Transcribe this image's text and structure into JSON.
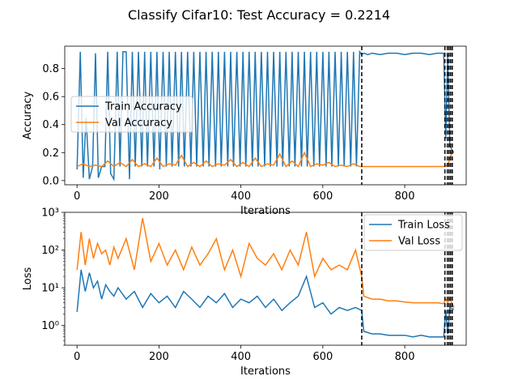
{
  "figure": {
    "title": "Classify Cifar10: Test Accuracy = 0.2214"
  },
  "chart_data": [
    {
      "type": "line",
      "panel": "accuracy",
      "xlabel": "Iterations",
      "ylabel": "Accuracy",
      "xlim": [
        -30,
        950
      ],
      "ylim": [
        -0.03,
        0.96
      ],
      "yscale": "linear",
      "xticks": [
        0,
        200,
        400,
        600,
        800
      ],
      "yticks": [
        0.0,
        0.2,
        0.4,
        0.6,
        0.8
      ],
      "ytick_labels": [
        "0.0",
        "0.2",
        "0.4",
        "0.6",
        "0.8"
      ],
      "legend_position": "center-left",
      "vlines": [
        695,
        898,
        904,
        908,
        912,
        916
      ],
      "series": [
        {
          "name": "Train Accuracy",
          "color": "#1f77b4",
          "x": [
            0,
            8,
            15,
            22,
            30,
            38,
            45,
            52,
            60,
            68,
            75,
            82,
            90,
            98,
            105,
            112,
            120,
            128,
            135,
            142,
            150,
            158,
            165,
            172,
            180,
            188,
            195,
            202,
            210,
            218,
            225,
            232,
            240,
            248,
            255,
            262,
            270,
            278,
            285,
            292,
            300,
            308,
            315,
            322,
            330,
            338,
            345,
            352,
            360,
            368,
            375,
            382,
            390,
            398,
            405,
            412,
            420,
            428,
            435,
            442,
            450,
            458,
            465,
            472,
            480,
            488,
            495,
            502,
            510,
            518,
            525,
            532,
            540,
            548,
            555,
            562,
            570,
            578,
            585,
            592,
            600,
            608,
            615,
            622,
            630,
            638,
            645,
            652,
            660,
            668,
            675,
            682,
            690,
            695,
            700,
            710,
            720,
            740,
            760,
            780,
            800,
            820,
            840,
            860,
            880,
            895,
            900,
            905,
            910,
            915,
            920
          ],
          "y": [
            0.08,
            0.92,
            0.02,
            0.45,
            0.01,
            0.1,
            0.91,
            0.02,
            0.1,
            0.1,
            0.92,
            0.05,
            0.01,
            0.92,
            0.1,
            0.92,
            0.92,
            0.01,
            0.92,
            0.1,
            0.92,
            0.1,
            0.92,
            0.1,
            0.92,
            0.1,
            0.92,
            0.08,
            0.92,
            0.1,
            0.92,
            0.1,
            0.92,
            0.1,
            0.92,
            0.1,
            0.92,
            0.1,
            0.92,
            0.1,
            0.92,
            0.1,
            0.92,
            0.1,
            0.92,
            0.1,
            0.92,
            0.1,
            0.92,
            0.1,
            0.92,
            0.1,
            0.92,
            0.1,
            0.92,
            0.1,
            0.92,
            0.1,
            0.92,
            0.1,
            0.92,
            0.1,
            0.92,
            0.1,
            0.92,
            0.1,
            0.92,
            0.1,
            0.92,
            0.1,
            0.92,
            0.1,
            0.92,
            0.1,
            0.92,
            0.1,
            0.92,
            0.1,
            0.92,
            0.1,
            0.92,
            0.1,
            0.92,
            0.1,
            0.92,
            0.1,
            0.92,
            0.1,
            0.92,
            0.1,
            0.92,
            0.1,
            0.92,
            0.9,
            0.91,
            0.9,
            0.91,
            0.9,
            0.91,
            0.91,
            0.9,
            0.91,
            0.91,
            0.9,
            0.91,
            0.91,
            0.3,
            0.9,
            0.25,
            0.22,
            0.2
          ]
        },
        {
          "name": "Val Accuracy",
          "color": "#ff7f0e",
          "x": [
            0,
            15,
            30,
            45,
            60,
            75,
            90,
            105,
            120,
            135,
            150,
            165,
            180,
            195,
            210,
            225,
            240,
            255,
            270,
            285,
            300,
            315,
            330,
            345,
            360,
            375,
            390,
            405,
            420,
            435,
            450,
            465,
            480,
            495,
            510,
            525,
            540,
            555,
            570,
            585,
            600,
            615,
            630,
            645,
            660,
            675,
            690,
            700,
            720,
            740,
            760,
            780,
            800,
            820,
            840,
            860,
            880,
            895,
            905,
            915,
            920
          ],
          "y": [
            0.1,
            0.12,
            0.1,
            0.11,
            0.1,
            0.14,
            0.1,
            0.13,
            0.1,
            0.15,
            0.1,
            0.12,
            0.1,
            0.16,
            0.1,
            0.12,
            0.11,
            0.18,
            0.1,
            0.13,
            0.1,
            0.14,
            0.1,
            0.12,
            0.11,
            0.15,
            0.1,
            0.13,
            0.1,
            0.16,
            0.1,
            0.12,
            0.11,
            0.19,
            0.1,
            0.14,
            0.1,
            0.2,
            0.1,
            0.12,
            0.11,
            0.13,
            0.1,
            0.11,
            0.1,
            0.12,
            0.1,
            0.1,
            0.1,
            0.1,
            0.1,
            0.1,
            0.1,
            0.1,
            0.1,
            0.1,
            0.1,
            0.1,
            0.11,
            0.2,
            0.2
          ]
        }
      ]
    },
    {
      "type": "line",
      "panel": "loss",
      "xlabel": "Iterations",
      "ylabel": "Loss",
      "xlim": [
        -30,
        950
      ],
      "ylim": [
        0.3,
        1000
      ],
      "yscale": "log",
      "xticks": [
        0,
        200,
        400,
        600,
        800
      ],
      "yticks": [
        1,
        10,
        100,
        1000
      ],
      "ytick_labels": [
        "10⁰",
        "10¹",
        "10²",
        "10³"
      ],
      "legend_position": "upper-right",
      "vlines": [
        695,
        898,
        904,
        908,
        912,
        916
      ],
      "series": [
        {
          "name": "Train Loss",
          "color": "#1f77b4",
          "x": [
            0,
            10,
            20,
            30,
            40,
            50,
            60,
            70,
            80,
            90,
            100,
            120,
            140,
            160,
            180,
            200,
            220,
            240,
            260,
            280,
            300,
            320,
            340,
            360,
            380,
            400,
            420,
            440,
            460,
            480,
            500,
            520,
            540,
            560,
            580,
            600,
            620,
            640,
            660,
            680,
            695,
            700,
            720,
            740,
            760,
            780,
            800,
            820,
            840,
            860,
            880,
            895,
            900,
            905,
            910,
            915,
            920
          ],
          "y": [
            2.3,
            30,
            8,
            25,
            10,
            15,
            5,
            12,
            8,
            6,
            10,
            5,
            8,
            3,
            7,
            4,
            6,
            3,
            8,
            5,
            3,
            6,
            4,
            7,
            3,
            5,
            4,
            6,
            3,
            5,
            2.5,
            4,
            6,
            20,
            3,
            4,
            2,
            3,
            2.5,
            3,
            2.5,
            0.7,
            0.6,
            0.6,
            0.55,
            0.55,
            0.55,
            0.5,
            0.55,
            0.5,
            0.5,
            0.5,
            2.5,
            0.6,
            3,
            2.8,
            2.7
          ]
        },
        {
          "name": "Val Loss",
          "color": "#ff7f0e",
          "x": [
            0,
            10,
            20,
            30,
            40,
            50,
            60,
            70,
            80,
            90,
            100,
            120,
            140,
            160,
            180,
            200,
            220,
            240,
            260,
            280,
            300,
            320,
            340,
            360,
            380,
            400,
            420,
            440,
            460,
            480,
            500,
            520,
            540,
            560,
            580,
            600,
            620,
            640,
            660,
            680,
            695,
            700,
            720,
            740,
            760,
            780,
            800,
            820,
            840,
            860,
            880,
            895,
            900,
            905,
            910,
            915,
            920
          ],
          "y": [
            30,
            300,
            40,
            200,
            60,
            150,
            80,
            100,
            40,
            120,
            60,
            200,
            30,
            700,
            50,
            150,
            40,
            100,
            30,
            120,
            40,
            80,
            200,
            30,
            100,
            20,
            150,
            60,
            40,
            80,
            30,
            100,
            40,
            300,
            20,
            60,
            30,
            40,
            30,
            100,
            20,
            6,
            5,
            5,
            4.5,
            4.5,
            4.2,
            4,
            4,
            4,
            4,
            3.8,
            5,
            4,
            5,
            4,
            3
          ]
        }
      ]
    }
  ]
}
